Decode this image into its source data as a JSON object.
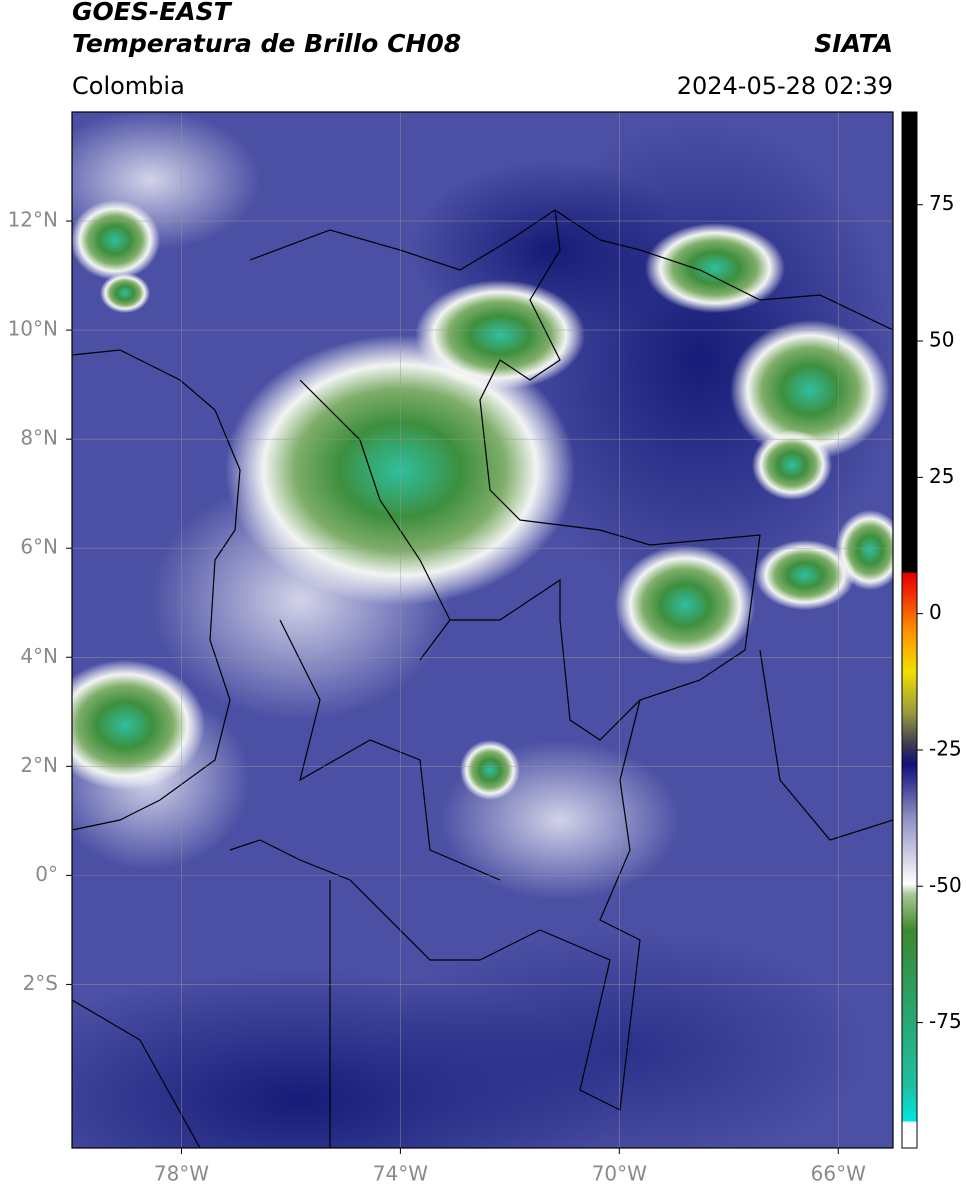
{
  "header": {
    "title": "GOES-EAST",
    "subtitle": "Temperatura de Brillo CH08",
    "source": "SIATA",
    "region": "Colombia",
    "timestamp": "2024-05-28 02:39"
  },
  "map": {
    "lon_lim": [
      -80,
      -65
    ],
    "lat_lim": [
      -5,
      14
    ],
    "grid": true,
    "lon_ticks": [
      {
        "value": -78,
        "label": "78°W"
      },
      {
        "value": -74,
        "label": "74°W"
      },
      {
        "value": -70,
        "label": "70°W"
      },
      {
        "value": -66,
        "label": "66°W"
      }
    ],
    "lat_ticks": [
      {
        "value": 12,
        "label": "12°N"
      },
      {
        "value": 10,
        "label": "10°N"
      },
      {
        "value": 8,
        "label": "8°N"
      },
      {
        "value": 6,
        "label": "6°N"
      },
      {
        "value": 4,
        "label": "4°N"
      },
      {
        "value": 2,
        "label": "2°N"
      },
      {
        "value": 0,
        "label": "0°"
      },
      {
        "value": -2,
        "label": "2°S"
      }
    ]
  },
  "colorbar": {
    "lim": [
      -98,
      92
    ],
    "ticks": [
      75,
      50,
      25,
      0,
      -25,
      -50,
      -75
    ]
  }
}
